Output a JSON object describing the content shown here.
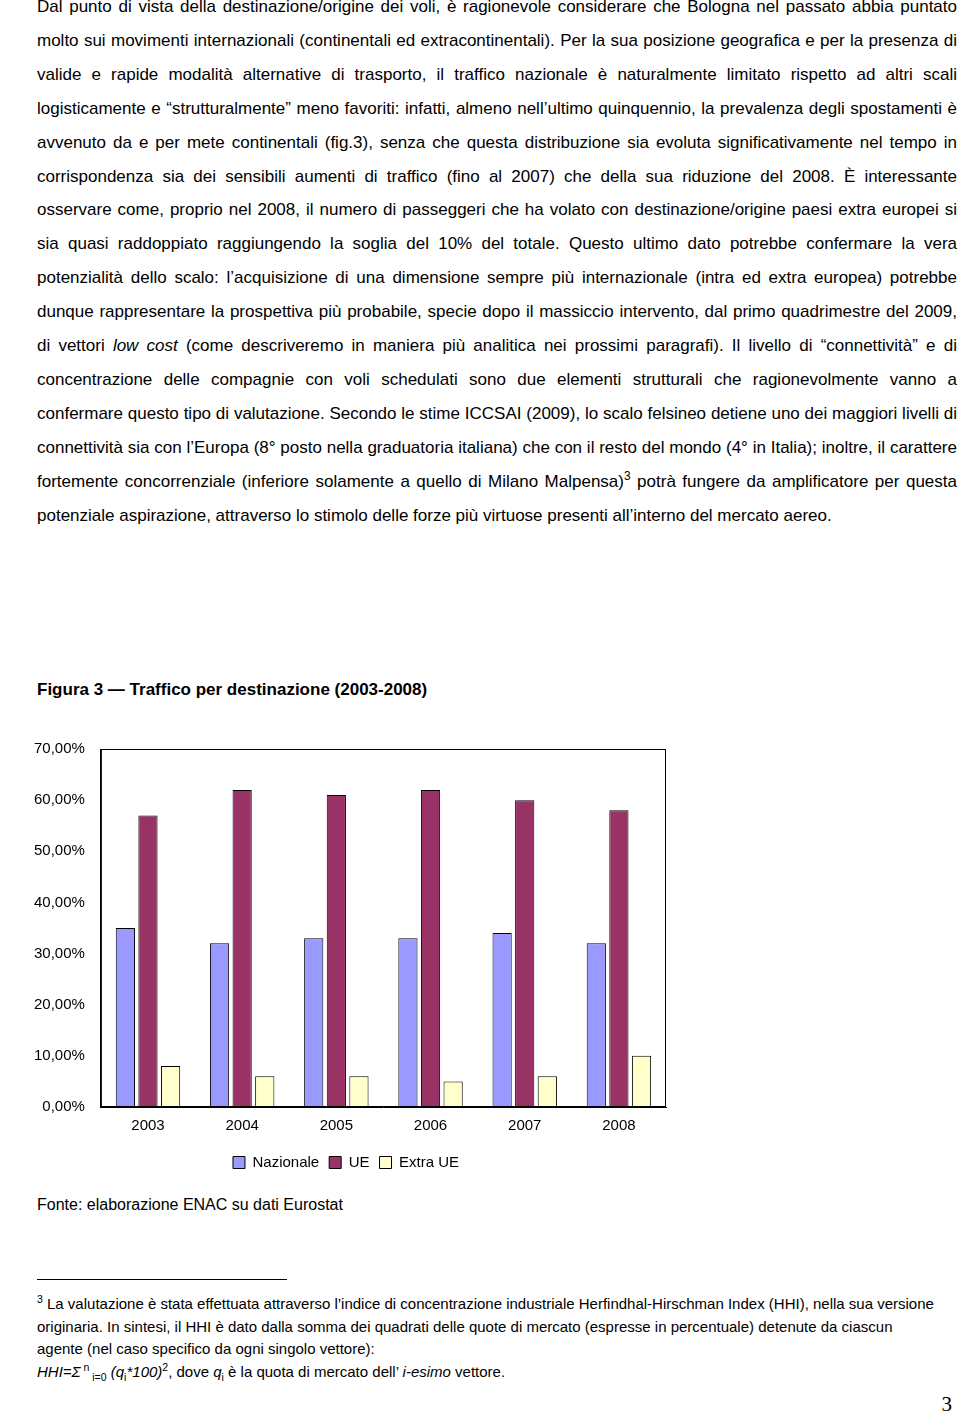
{
  "paragraph": [
    {
      "text": "Dal punto di vista della destinazione/origine dei voli, è ragionevole considerare che Bologna nel passato abbia puntato molto sui movimenti internazionali (continentali ed extracontinentali). Per la sua posizione geografica e per la presenza di valide e rapide modalità alternative di trasporto, il traffico nazionale è naturalmente limitato rispetto ad altri scali logisticamente e “strutturalmente” meno favoriti: infatti, almeno nell’ultimo quinquennio, la prevalenza degli spostamenti è avvenuto da e per mete continentali (fig.3), senza che questa distribuzione sia evoluta significativamente nel tempo in corrispondenza sia dei sensibili aumenti di traffico (fino al 2007) che della sua riduzione del 2008. È interessante osservare come, proprio nel 2008, il numero di passeggeri che ha volato con destinazione/origine paesi extra europei si sia quasi raddoppiato raggiungendo la soglia del 10% del totale. Questo ultimo dato potrebbe confermare  la vera potenzialità dello scalo: l’acquisizione di una dimensione sempre più internazionale (intra ed extra europea) potrebbe dunque rappresentare la prospettiva più probabile, specie dopo il massiccio intervento, dal primo quadrimestre del 2009, di vettori "
    },
    {
      "text": "low cost",
      "style": "italic"
    },
    {
      "text": " (come descriveremo in maniera più analitica nei prossimi paragrafi). Il livello di “connettività” e di concentrazione delle compagnie con voli schedulati sono due elementi strutturali che ragionevolmente vanno  a confermare questo tipo di valutazione. Secondo le stime ICCSAI (2009), lo scalo felsineo detiene uno dei maggiori livelli di connettività sia con l’Europa (8° posto nella graduatoria italiana) che con il resto del mondo (4° in Italia); inoltre, il carattere fortemente concorrenziale (inferiore solamente a quello di Milano Malpensa)"
    },
    {
      "text": "3",
      "style": "sup"
    },
    {
      "text": " potrà fungere da amplificatore per questa potenziale aspirazione, attraverso lo stimolo delle forze più virtuose presenti all’interno del mercato aereo."
    }
  ],
  "caption": "Figura 3 — Traffico per destinazione (2003-2008)",
  "chart_data": {
    "type": "bar",
    "categories": [
      "2003",
      "2004",
      "2005",
      "2006",
      "2007",
      "2008"
    ],
    "series": [
      {
        "name": "Nazionale",
        "color": "#9999ff",
        "values": [
          35,
          32,
          33,
          33,
          34,
          32
        ]
      },
      {
        "name": "UE",
        "color": "#993366",
        "values": [
          57,
          62,
          61,
          62,
          60,
          58
        ]
      },
      {
        "name": "Extra UE",
        "color": "#ffffcc",
        "values": [
          8,
          6,
          6,
          5,
          6,
          10
        ]
      }
    ],
    "ylim": [
      0,
      70
    ],
    "yticks": [
      {
        "value": 0,
        "label": "0,00%"
      },
      {
        "value": 10,
        "label": "10,00%"
      },
      {
        "value": 20,
        "label": "20,00%"
      },
      {
        "value": 30,
        "label": "30,00%"
      },
      {
        "value": 40,
        "label": "40,00%"
      },
      {
        "value": 50,
        "label": "50,00%"
      },
      {
        "value": 60,
        "label": "60,00%"
      },
      {
        "value": 70,
        "label": "70,00%"
      }
    ],
    "grid": false,
    "legend": "bottom"
  },
  "source": "Fonte: elaborazione ENAC su dati Eurostat",
  "footnote": {
    "marker": "3",
    "text": " La valutazione è stata effettuata attraverso l’indice di concentrazione industriale Herfindhal-Hirschman Index (HHI), nella sua versione originaria. In sintesi, il HHI è dato dalla somma dei quadrati delle quote di mercato (espresse in percentuale) detenute da ciascun agente (nel caso specifico da ogni singolo vettore):",
    "formula": [
      {
        "text": "HHI=",
        "style": "italic"
      },
      {
        "text": "Σ",
        "style": "italic"
      },
      {
        "text": " n",
        "style": "sup"
      },
      {
        "text": " i=0",
        "style": "sub"
      },
      {
        "text": " (q",
        "style": "italic"
      },
      {
        "text": "i",
        "style": "sub"
      },
      {
        "text": "*100)",
        "style": "italic"
      },
      {
        "text": "2",
        "style": "sup"
      },
      {
        "text": ", dove "
      },
      {
        "text": "q",
        "style": "italic"
      },
      {
        "text": "i",
        "style": "sub"
      },
      {
        "text": " è la quota di mercato dell’ "
      },
      {
        "text": "i-esimo",
        "style": "italic"
      },
      {
        "text": " vettore."
      }
    ]
  },
  "page_number": "3"
}
